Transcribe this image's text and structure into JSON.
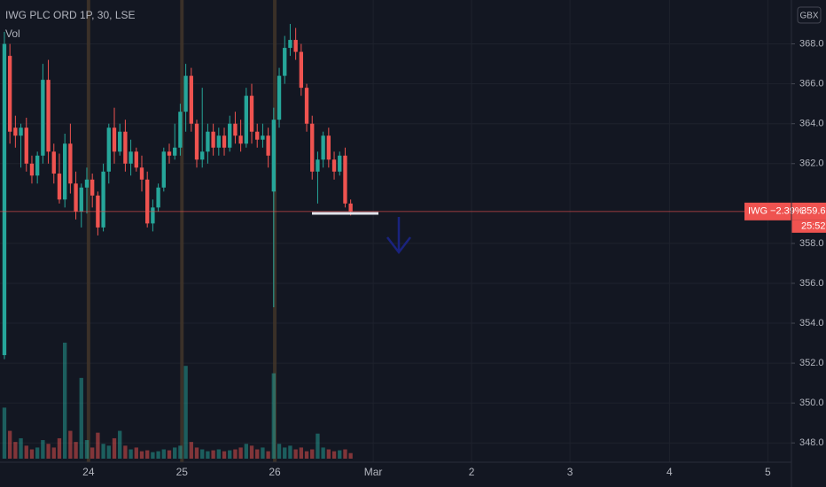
{
  "chart_data": {
    "type": "candlestick",
    "title": "IWG PLC ORD 1P, 30, LSE",
    "volume_label": "Vol",
    "currency": "GBX",
    "up_color": "#26a69a",
    "down_color": "#ef5350",
    "open": [
      352.4,
      367.4,
      363.8,
      363.4,
      363.8,
      362,
      361.4,
      362.4,
      366.2,
      362.6,
      361.5,
      360.2,
      363,
      361,
      359.6,
      360.8,
      361.2,
      360.4,
      358.8,
      361.6,
      363.8,
      362.6,
      363.6,
      362,
      362.6,
      361.8,
      361.2,
      359,
      359.8,
      360.8,
      362.6,
      362.4,
      362.8,
      364.6,
      366.4,
      364,
      362.2,
      362.6,
      363.6,
      362.8,
      363.4,
      362.8,
      364,
      363.4,
      363,
      365.4,
      363.6,
      363.2,
      363.4,
      360.6,
      364.2,
      366.4,
      367.8,
      368.2,
      367.6,
      365.8,
      364,
      361.6,
      362.2,
      363.4,
      362.2,
      361.6,
      362.4,
      360
    ],
    "high": [
      368.6,
      368,
      364.4,
      364,
      364.3,
      362.4,
      362.6,
      367,
      367.2,
      363,
      362.5,
      363.5,
      364,
      361.6,
      361,
      361.8,
      361.5,
      360.6,
      362,
      364,
      364.8,
      364,
      364.2,
      363.2,
      362.8,
      362.4,
      361.6,
      360.2,
      361,
      362.8,
      363,
      364,
      365,
      367,
      366.8,
      364.2,
      365.8,
      364,
      364,
      363.8,
      363.8,
      364.4,
      364.6,
      364.2,
      365.8,
      366,
      364,
      364,
      363.8,
      364.8,
      366.8,
      368.4,
      369,
      368.8,
      368,
      366,
      364.4,
      362.6,
      363.6,
      363.8,
      362.6,
      362.6,
      362.8,
      360.2
    ],
    "low": [
      352.2,
      363,
      362.8,
      361.8,
      361.6,
      361,
      361,
      362,
      362,
      361,
      360,
      359.8,
      360.5,
      359.2,
      358.8,
      359.5,
      359.8,
      358.4,
      358.6,
      361,
      362,
      362.4,
      361.6,
      361.4,
      361.6,
      360.6,
      358.8,
      358.6,
      359.6,
      360.6,
      362,
      362.2,
      362.4,
      363.6,
      363.6,
      361.8,
      361.8,
      362,
      362.4,
      362.4,
      362.4,
      362.6,
      363,
      362.6,
      362.8,
      363,
      362.8,
      362.8,
      361.8,
      354.8,
      363.8,
      366,
      367.4,
      367.2,
      365.4,
      363.6,
      361.2,
      360,
      361.8,
      361.8,
      361.2,
      361.4,
      359.8,
      359.4
    ],
    "close": [
      368,
      363.6,
      363.4,
      363.8,
      362,
      361.4,
      362.4,
      366.2,
      362.6,
      361.5,
      360.2,
      363,
      361,
      359.6,
      360.8,
      361.2,
      360.4,
      358.8,
      361.6,
      363.8,
      362.6,
      363.6,
      362,
      362.6,
      361.8,
      361.2,
      359,
      359.8,
      360.8,
      362.6,
      362.4,
      362.8,
      364.6,
      366.4,
      364,
      362.2,
      362.6,
      363.6,
      362.8,
      363.4,
      362.8,
      364,
      363.4,
      363,
      365.4,
      363.6,
      363.2,
      363.4,
      362.4,
      364.2,
      366.4,
      367.8,
      368.2,
      367.6,
      365.8,
      364,
      361.6,
      362.2,
      363.4,
      362.2,
      361.6,
      362.4,
      360,
      359.6
    ],
    "volume": [
      55,
      30,
      18,
      22,
      14,
      10,
      12,
      20,
      16,
      12,
      22,
      125,
      30,
      18,
      87,
      20,
      12,
      28,
      16,
      14,
      22,
      30,
      14,
      10,
      12,
      8,
      9,
      7,
      8,
      10,
      9,
      12,
      14,
      100,
      18,
      12,
      10,
      8,
      9,
      10,
      8,
      9,
      10,
      12,
      16,
      14,
      10,
      12,
      8,
      92,
      16,
      12,
      14,
      10,
      12,
      8,
      10,
      27,
      12,
      10,
      8,
      9,
      10,
      6
    ],
    "xlim": [
      -0.8,
      143.2
    ],
    "xticks": [
      {
        "value": 15.3,
        "label": "24"
      },
      {
        "value": 32.3,
        "label": "25"
      },
      {
        "value": 49.2,
        "label": "26"
      },
      {
        "value": 67.1,
        "label": "Mar"
      },
      {
        "value": 85,
        "label": "2"
      },
      {
        "value": 102.9,
        "label": "3"
      },
      {
        "value": 121,
        "label": "4"
      },
      {
        "value": 138.9,
        "label": "5"
      }
    ],
    "ylim": [
      346.9,
      370.2
    ],
    "yticks": [
      {
        "value": 348,
        "label": "348.0"
      },
      {
        "value": 350,
        "label": "350.0"
      },
      {
        "value": 352,
        "label": "352.0"
      },
      {
        "value": 354,
        "label": "354.0"
      },
      {
        "value": 356,
        "label": "356.0"
      },
      {
        "value": 358,
        "label": "358.0"
      },
      {
        "value": 362,
        "label": "362.0"
      },
      {
        "value": 364,
        "label": "364.0"
      },
      {
        "value": 366,
        "label": "366.0"
      },
      {
        "value": 368,
        "label": "368.0"
      }
    ],
    "last_price": 359.6,
    "price_tag": "IWG −2.39%",
    "countdown": "25:52",
    "grid": true
  }
}
